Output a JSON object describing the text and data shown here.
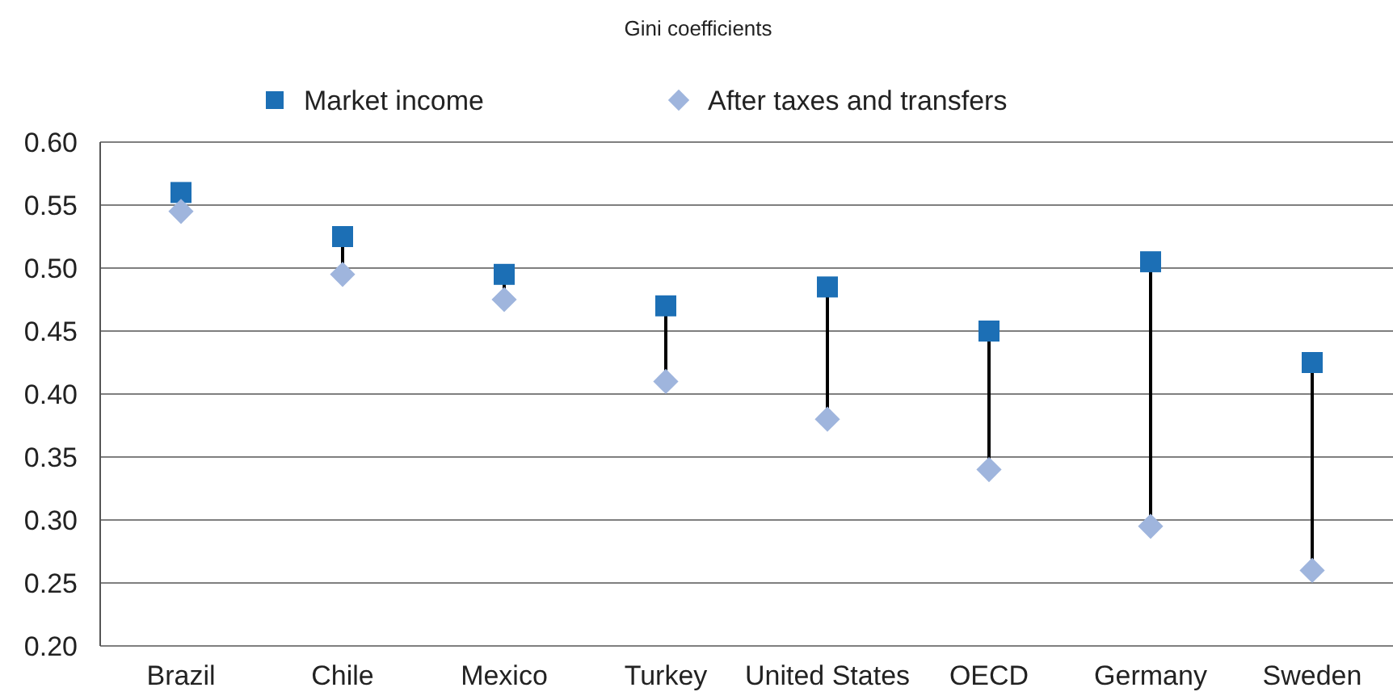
{
  "chart_data": {
    "type": "scatter",
    "title": "Gini coefficients",
    "categories": [
      "Brazil",
      "Chile",
      "Mexico",
      "Turkey",
      "United States",
      "OECD",
      "Germany",
      "Sweden"
    ],
    "series": [
      {
        "name": "Market income",
        "color": "#1c6fb5",
        "marker": "square",
        "values": [
          0.56,
          0.525,
          0.495,
          0.47,
          0.485,
          0.45,
          0.505,
          0.425
        ]
      },
      {
        "name": "After taxes and transfers",
        "color": "#9fb5dd",
        "marker": "diamond",
        "values": [
          0.545,
          0.495,
          0.475,
          0.41,
          0.38,
          0.34,
          0.295,
          0.26
        ]
      }
    ],
    "ylim": [
      0.2,
      0.6
    ],
    "yticks": [
      {
        "value": 0.2,
        "label": "0.20"
      },
      {
        "value": 0.25,
        "label": "0.25"
      },
      {
        "value": 0.3,
        "label": "0.30"
      },
      {
        "value": 0.35,
        "label": "0.35"
      },
      {
        "value": 0.4,
        "label": "0.40"
      },
      {
        "value": 0.45,
        "label": "0.45"
      },
      {
        "value": 0.5,
        "label": "0.50"
      },
      {
        "value": 0.55,
        "label": "0.55"
      },
      {
        "value": 0.6,
        "label": "0.60"
      }
    ],
    "grid": "y",
    "legend": "top"
  }
}
